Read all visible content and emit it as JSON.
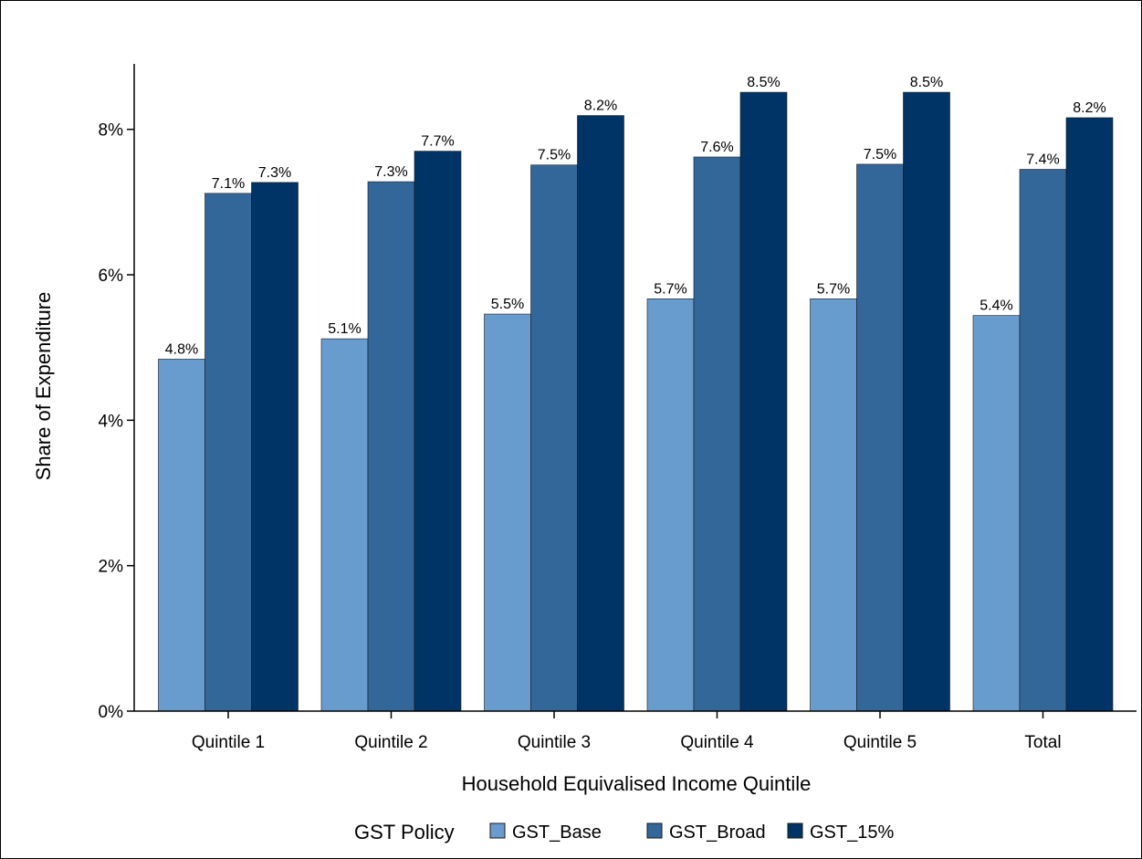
{
  "chart_data": {
    "type": "bar",
    "title": "",
    "xlabel": "Household Equivalised Income Quintile",
    "ylabel": "Share of Expenditure",
    "categories": [
      "Quintile 1",
      "Quintile 2",
      "Quintile 3",
      "Quintile 4",
      "Quintile 5",
      "Total"
    ],
    "series": [
      {
        "name": "GST_Base",
        "color": "#699CCE",
        "values": [
          4.84,
          5.12,
          5.46,
          5.67,
          5.67,
          5.44
        ],
        "labels": [
          "4.8%",
          "5.1%",
          "5.5%",
          "5.7%",
          "5.7%",
          "5.4%"
        ]
      },
      {
        "name": "GST_Broad",
        "color": "#33679A",
        "values": [
          7.12,
          7.28,
          7.51,
          7.62,
          7.52,
          7.45
        ],
        "labels": [
          "7.1%",
          "7.3%",
          "7.5%",
          "7.6%",
          "7.5%",
          "7.4%"
        ]
      },
      {
        "name": "GST_15%",
        "color": "#003366",
        "values": [
          7.27,
          7.7,
          8.19,
          8.51,
          8.51,
          8.16
        ],
        "labels": [
          "7.3%",
          "7.7%",
          "8.2%",
          "8.5%",
          "8.5%",
          "8.2%"
        ]
      }
    ],
    "ylim": [
      0,
      8.9
    ],
    "yticks": [
      0,
      2,
      4,
      6,
      8
    ],
    "ytick_labels": [
      "0%",
      "2%",
      "4%",
      "6%",
      "8%"
    ],
    "grid": false,
    "legend": {
      "title": "GST Policy",
      "placement": "bottom"
    }
  }
}
